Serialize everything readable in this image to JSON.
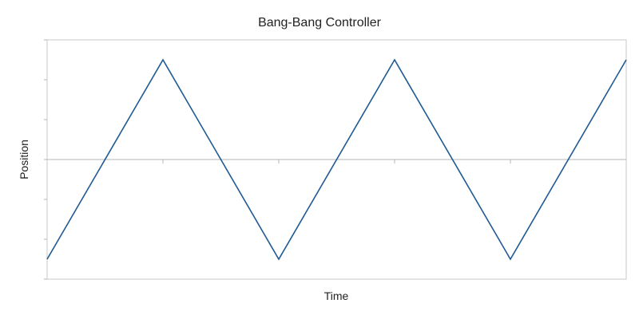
{
  "chart_data": {
    "type": "line",
    "title": "Bang-Bang Controller",
    "xlabel": "Time",
    "ylabel": "Position",
    "xlim": [
      0,
      5
    ],
    "ylim": [
      -1.2,
      1.2
    ],
    "grid": false,
    "x_ticks": [
      1,
      2,
      3,
      4
    ],
    "y_ticks": [
      -1.2,
      -0.8,
      -0.4,
      0,
      0.4,
      0.8,
      1.2
    ],
    "series": [
      {
        "color": "#1f5a94",
        "x": [
          0,
          1,
          2,
          3,
          4,
          5
        ],
        "y": [
          -1,
          1,
          -1,
          1,
          -1,
          1
        ]
      }
    ]
  }
}
